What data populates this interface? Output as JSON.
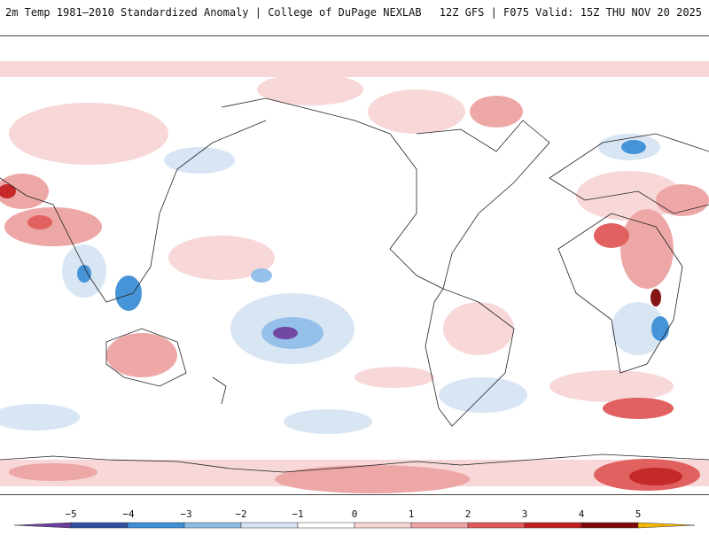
{
  "header": {
    "title": "2m Temp 1981–2010 Standardized Anomaly | College of DuPage NEXLAB",
    "valid": "12Z GFS | F075 Valid: 15Z THU NOV 20 2025"
  },
  "map": {
    "projection": "Pacific-centered equirectangular world map",
    "anomaly_palette": {
      "-5": "#6a3fa0",
      "-4": "#2c4f9e",
      "-3": "#3d8fd6",
      "-2": "#8fbde8",
      "-1": "#d6e4f3",
      "0": "#ffffff",
      "1": "#f7d5d5",
      "2": "#eea3a3",
      "3": "#e05858",
      "4": "#c21e1e",
      "5": "#7e0a0a"
    }
  },
  "colorbar": {
    "labels": [
      "−5",
      "−4",
      "−3",
      "−2",
      "−1",
      "0",
      "1",
      "2",
      "3",
      "4",
      "5"
    ],
    "colors": [
      "#6a3fa0",
      "#2c4f9e",
      "#3d8fd6",
      "#8fbde8",
      "#d6e4f3",
      "#ffffff",
      "#f7d5d5",
      "#eea3a3",
      "#e05858",
      "#c21e1e",
      "#7e0a0a",
      "#f5b800"
    ]
  }
}
